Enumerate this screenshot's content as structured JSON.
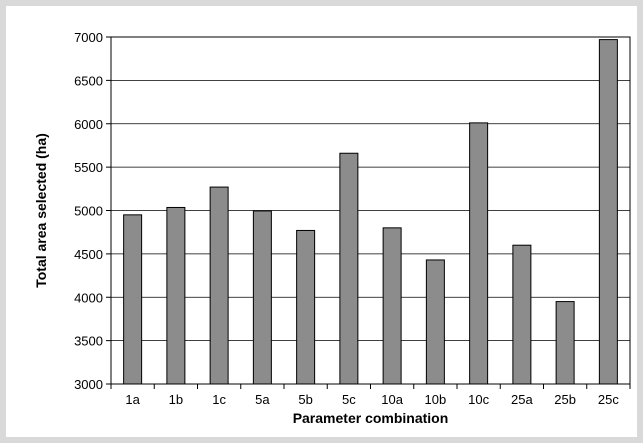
{
  "chart_data": {
    "type": "bar",
    "title": "",
    "xlabel": "Parameter combination",
    "ylabel": "Total area selected (ha)",
    "categories": [
      "1a",
      "1b",
      "1c",
      "5a",
      "5b",
      "5c",
      "10a",
      "10b",
      "10c",
      "25a",
      "25b",
      "25c"
    ],
    "values": [
      4950,
      5035,
      5270,
      4995,
      4770,
      5660,
      4800,
      4430,
      6010,
      4600,
      3950,
      6970
    ],
    "ylim": [
      3000,
      7000
    ],
    "yticks": [
      3000,
      3500,
      4000,
      4500,
      5000,
      5500,
      6000,
      6500,
      7000
    ],
    "grid": true,
    "bar_color": "#8c8c8c",
    "legend": false
  }
}
